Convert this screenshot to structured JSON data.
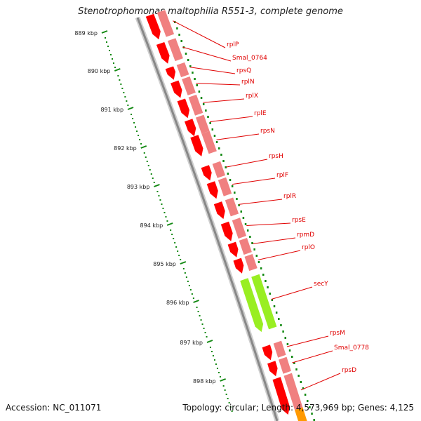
{
  "title": "Stenotrophomonas maltophilia R551-3, complete genome",
  "footer": {
    "accession": "Accession: NC_011071",
    "stats": "Topology: circular; Length: 4,573,969 bp; Genes: 4,125"
  },
  "colors": {
    "gene_forward": "#ff0000",
    "gene_track": "#f08080",
    "highlight_gene": "#99ee22",
    "ticks": "#118811",
    "labels": "#e00000",
    "backbone": "#888888"
  },
  "ruler": {
    "unit": "kbp",
    "ticks": [
      "889 kbp",
      "890 kbp",
      "891 kbp",
      "892 kbp",
      "893 kbp",
      "894 kbp",
      "895 kbp",
      "896 kbp",
      "897 kbp",
      "898 kbp"
    ]
  },
  "genes": [
    {
      "name": "rplP"
    },
    {
      "name": "Smal_0764"
    },
    {
      "name": "rpsQ"
    },
    {
      "name": "rplN"
    },
    {
      "name": "rplX"
    },
    {
      "name": "rplE"
    },
    {
      "name": "rpsN"
    },
    {
      "name": "rpsH"
    },
    {
      "name": "rplF"
    },
    {
      "name": "rplR"
    },
    {
      "name": "rpsE"
    },
    {
      "name": "rpmD"
    },
    {
      "name": "rplO"
    },
    {
      "name": "secY",
      "highlight": true
    },
    {
      "name": "rpsM"
    },
    {
      "name": "Smal_0778"
    },
    {
      "name": "rpsD"
    }
  ]
}
